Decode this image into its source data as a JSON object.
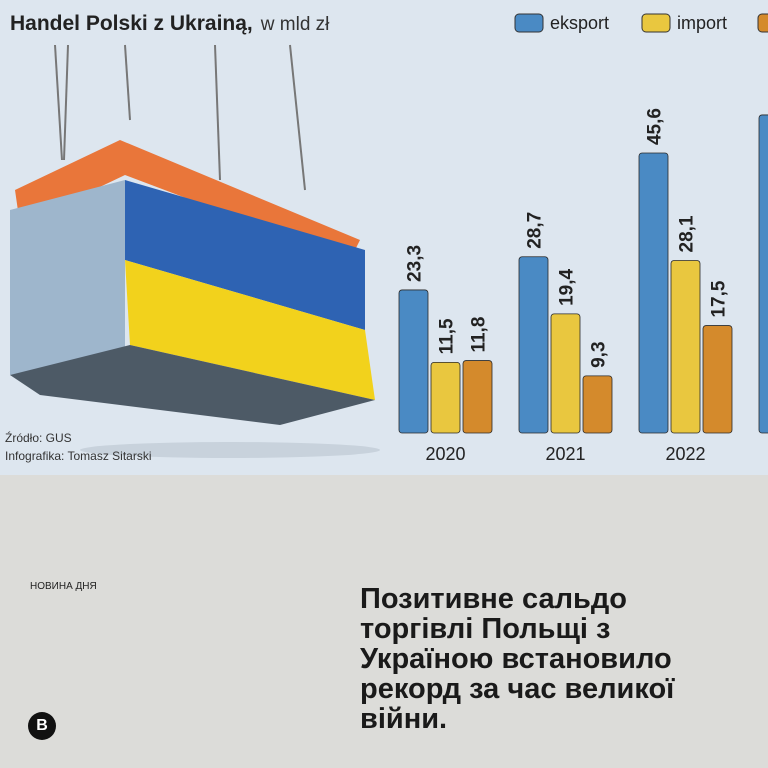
{
  "chart_data": {
    "type": "bar",
    "title": "Handel Polski z Ukrainą,",
    "subtitle": "w mld zł",
    "categories": [
      "2020",
      "2021",
      "2022",
      null
    ],
    "series": [
      {
        "name": "eksport",
        "color": "#4a8ac4",
        "values": [
          23.3,
          28.7,
          45.6,
          51.8
        ],
        "value_labels": [
          "23,3",
          "28,7",
          "45,6",
          null
        ]
      },
      {
        "name": "import",
        "color": "#e9c73f",
        "values": [
          11.5,
          19.4,
          28.1,
          null
        ],
        "value_labels": [
          "11,5",
          "19,4",
          "28,1",
          null
        ]
      },
      {
        "color": "#d48a2c",
        "values": [
          11.8,
          9.3,
          17.5,
          null
        ],
        "value_labels": [
          "11,8",
          "9,3",
          "17,5",
          null
        ]
      }
    ],
    "source": "Źródło: GUS",
    "credit": "Infografika: Tomasz Sitarski"
  },
  "post": {
    "tag": "НОВИНА ДНЯ",
    "headline": [
      "Позитивне сальдо",
      "торгівлі Польщі з",
      "Україною встановило",
      "рекорд за час великої",
      "війни."
    ]
  }
}
